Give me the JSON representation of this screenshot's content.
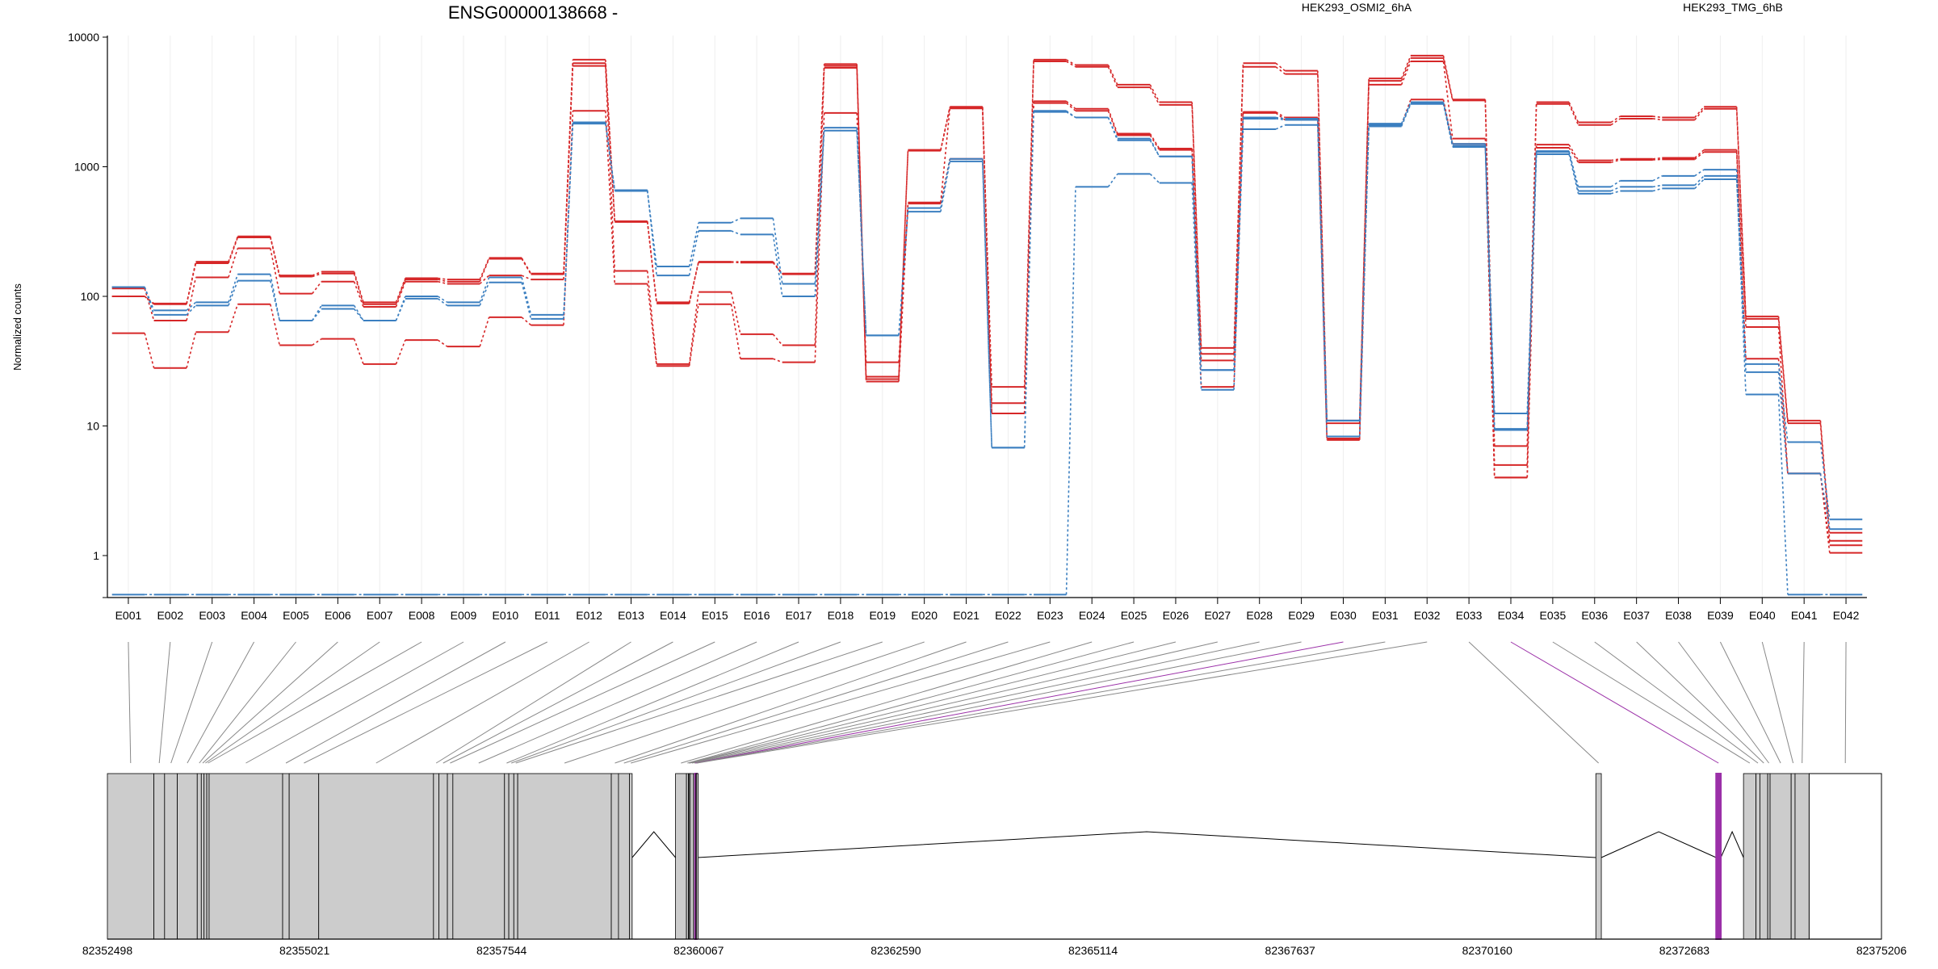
{
  "chart_data": {
    "type": "line",
    "title": "ENSG00000138668 -",
    "ylabel": "Normalized counts",
    "yscale": "log",
    "ylim": [
      0.5,
      10000
    ],
    "yticks": [
      1,
      10,
      100,
      1000,
      10000
    ],
    "ytick_labels": [
      "1",
      "10",
      "100",
      "1000",
      "10000"
    ],
    "categories": [
      "E001",
      "E002",
      "E003",
      "E004",
      "E005",
      "E006",
      "E007",
      "E008",
      "E009",
      "E010",
      "E011",
      "E012",
      "E013",
      "E014",
      "E015",
      "E016",
      "E017",
      "E018",
      "E019",
      "E020",
      "E021",
      "E022",
      "E023",
      "E024",
      "E025",
      "E026",
      "E027",
      "E028",
      "E029",
      "E030",
      "E031",
      "E032",
      "E033",
      "E034",
      "E035",
      "E036",
      "E037",
      "E038",
      "E039",
      "E040",
      "E041",
      "E042"
    ],
    "legend": [
      {
        "name": "HEK293_OSMI2_6hA",
        "color": "#d62728"
      },
      {
        "name": "HEK293_TMG_6hB",
        "color": "#3b7fc0"
      }
    ],
    "series": [
      {
        "name": "HEK293_OSMI2_6hA",
        "color": "#d62728",
        "values": [
          100,
          88,
          185,
          290,
          145,
          155,
          90,
          138,
          135,
          198,
          150,
          6700,
          380,
          90,
          185,
          185,
          150,
          6200,
          24,
          1350,
          2900,
          20,
          6700,
          6100,
          4300,
          3150,
          40,
          6300,
          5500,
          11,
          4800,
          7200,
          3300,
          7,
          3150,
          2200,
          2450,
          2400,
          2900,
          70,
          11,
          1.5
        ]
      },
      {
        "name": "HEK293_OSMI2_6hA",
        "color": "#d62728",
        "values": [
          100,
          87,
          180,
          285,
          142,
          150,
          87,
          135,
          130,
          195,
          148,
          6300,
          375,
          88,
          183,
          182,
          148,
          6000,
          23,
          1330,
          2870,
          15,
          6500,
          5900,
          4100,
          3000,
          36,
          5900,
          5200,
          10.5,
          4600,
          6900,
          3250,
          5,
          3050,
          2100,
          2350,
          2300,
          2800,
          67,
          10.5,
          1.3
        ]
      },
      {
        "name": "HEK293_OSMI2_6hA",
        "color": "#d62728",
        "values": [
          115,
          65,
          140,
          235,
          105,
          130,
          83,
          130,
          125,
          145,
          135,
          6000,
          157,
          30,
          108,
          51,
          42,
          5800,
          22,
          530,
          2820,
          12.5,
          3200,
          2800,
          1800,
          1380,
          32,
          2650,
          2400,
          8,
          4300,
          6500,
          1650,
          4,
          1480,
          1120,
          1150,
          1170,
          1350,
          58,
          4.3,
          1.2
        ]
      },
      {
        "name": "HEK293_OSMI2_6hA",
        "color": "#d62728",
        "values": [
          52,
          28,
          53,
          87,
          42,
          47,
          30,
          46,
          41,
          69,
          60,
          2700,
          125,
          29,
          87,
          33,
          31,
          2600,
          31,
          520,
          1150,
          12.5,
          3100,
          2700,
          1750,
          1350,
          20,
          2600,
          2300,
          7.8,
          2100,
          3300,
          1500,
          4,
          1400,
          1080,
          1130,
          1140,
          1300,
          33,
          4.3,
          1.05
        ]
      },
      {
        "name": "HEK293_TMG_6hB",
        "color": "#3b7fc0",
        "values": [
          118,
          72,
          85,
          132,
          65,
          80,
          65,
          96,
          85,
          128,
          67,
          2200,
          660,
          145,
          320,
          300,
          100,
          1900,
          50,
          450,
          1100,
          6.8,
          2650,
          2400,
          1600,
          1200,
          27,
          2350,
          2300,
          11,
          2100,
          3100,
          1450,
          9.5,
          1250,
          620,
          650,
          680,
          800,
          26,
          4.3,
          1.6
        ]
      },
      {
        "name": "HEK293_TMG_6hB",
        "color": "#3b7fc0",
        "values": [
          118,
          78,
          90,
          148,
          65,
          85,
          65,
          100,
          90,
          140,
          72,
          2150,
          650,
          170,
          370,
          400,
          125,
          2000,
          50,
          480,
          1150,
          6.8,
          2700,
          2400,
          1650,
          1200,
          27,
          2400,
          2350,
          11,
          2150,
          3150,
          1500,
          12.5,
          1300,
          700,
          780,
          850,
          950,
          30,
          7.5,
          1.9
        ]
      },
      {
        "name": "HEK293_TMG_6hB",
        "color": "#3b7fc0",
        "values": [
          0.5,
          0.5,
          0.5,
          0.5,
          0.5,
          0.5,
          0.5,
          0.5,
          0.5,
          0.5,
          0.5,
          0.5,
          0.5,
          0.5,
          0.5,
          0.5,
          0.5,
          0.5,
          0.5,
          0.5,
          0.5,
          0.5,
          0.5,
          700,
          880,
          750,
          19,
          1950,
          2100,
          8.3,
          2050,
          3050,
          1420,
          9.3,
          1320,
          650,
          700,
          720,
          850,
          17.5,
          0.5,
          0.5
        ]
      }
    ],
    "grid": true,
    "grid_axis": "x",
    "legend_placement": "top-right",
    "gene_model": {
      "coordinate_ticks": [
        82352498,
        82355021,
        82357544,
        82360067,
        82362590,
        82365114,
        82367637,
        82370160,
        82372683,
        82375206
      ],
      "coordinate_tick_labels": [
        "82352498",
        "82355021",
        "82357544",
        "82360067",
        "82362590",
        "82365114",
        "82367637",
        "82370160",
        "82372683",
        "82375206"
      ],
      "range": [
        82352498,
        82375206
      ],
      "exons": [
        {
          "id": "E001",
          "start": 82352498,
          "end": 82353093
        },
        {
          "id": "E002",
          "start": 82353093,
          "end": 82353230
        },
        {
          "id": "E003",
          "start": 82353230,
          "end": 82353393
        },
        {
          "id": "E004",
          "start": 82353393,
          "end": 82353648
        },
        {
          "id": "E005",
          "start": 82353648,
          "end": 82353700
        },
        {
          "id": "E006",
          "start": 82353700,
          "end": 82353735
        },
        {
          "id": "E007",
          "start": 82353735,
          "end": 82353770
        },
        {
          "id": "E008",
          "start": 82353770,
          "end": 82353800
        },
        {
          "id": "E009",
          "start": 82353800,
          "end": 82354741
        },
        {
          "id": "E010",
          "start": 82354741,
          "end": 82354825
        },
        {
          "id": "E011",
          "start": 82354825,
          "end": 82355203
        },
        {
          "id": "E012",
          "start": 82355203,
          "end": 82356672
        },
        {
          "id": "E013",
          "start": 82356672,
          "end": 82356741
        },
        {
          "id": "E014",
          "start": 82356741,
          "end": 82356850
        },
        {
          "id": "E015",
          "start": 82356850,
          "end": 82356920
        },
        {
          "id": "E016",
          "start": 82356920,
          "end": 82357581
        },
        {
          "id": "E017",
          "start": 82357581,
          "end": 82357636
        },
        {
          "id": "E018",
          "start": 82357636,
          "end": 82357700
        },
        {
          "id": "E019",
          "start": 82357700,
          "end": 82357750
        },
        {
          "id": "E020",
          "start": 82357750,
          "end": 82358948
        },
        {
          "id": "E021",
          "start": 82358948,
          "end": 82359040
        },
        {
          "id": "E022",
          "start": 82359040,
          "end": 82359180
        },
        {
          "id": "E023",
          "start": 82359180,
          "end": 82359215
        },
        {
          "id": "E024",
          "start": 82359770,
          "end": 82359910
        },
        {
          "id": "E025",
          "start": 82359910,
          "end": 82359935
        },
        {
          "id": "E026",
          "start": 82359935,
          "end": 82359945
        },
        {
          "id": "E027",
          "start": 82359945,
          "end": 82359960
        },
        {
          "id": "E028",
          "start": 82359960,
          "end": 82360000
        },
        {
          "id": "E029",
          "start": 82360000,
          "end": 82360020
        },
        {
          "id": "E030",
          "start": 82360020,
          "end": 82360030
        },
        {
          "id": "E031",
          "start": 82360030,
          "end": 82360040
        },
        {
          "id": "E032",
          "start": 82360040,
          "end": 82360050
        },
        {
          "id": "E033",
          "start": 82371550,
          "end": 82371620
        },
        {
          "id": "E034",
          "start": 82373090,
          "end": 82373150
        },
        {
          "id": "E035",
          "start": 82373440,
          "end": 82373600
        },
        {
          "id": "E036",
          "start": 82373600,
          "end": 82373650
        },
        {
          "id": "E037",
          "start": 82373650,
          "end": 82373750
        },
        {
          "id": "E038",
          "start": 82373750,
          "end": 82373780
        },
        {
          "id": "E039",
          "start": 82373780,
          "end": 82374050
        },
        {
          "id": "E040",
          "start": 82374050,
          "end": 82374100
        },
        {
          "id": "E041",
          "start": 82374100,
          "end": 82374280
        },
        {
          "id": "E042",
          "start": 82374280,
          "end": 82375206
        }
      ],
      "highlighted_exons": [
        "E030",
        "E034"
      ],
      "highlight_color": "#9b30a8"
    }
  }
}
